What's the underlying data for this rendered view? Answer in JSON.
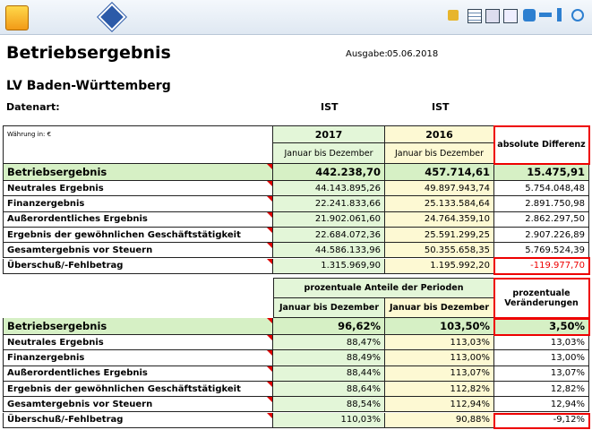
{
  "header": {
    "title": "Betriebsergebnis",
    "issue_label": "Ausgabe:",
    "issue_date": "05.06.2018",
    "organisation": "LV Baden-Württemberg",
    "data_type_label": "Datenart:",
    "data_types": [
      "IST",
      "IST"
    ]
  },
  "table1": {
    "currency": "Währung in: €",
    "columns": [
      {
        "year": "2017",
        "period": "Januar bis Dezember"
      },
      {
        "year": "2016",
        "period": "Januar bis Dezember"
      }
    ],
    "diff_header": "absolute Differenz",
    "rows": [
      [
        "Betriebsergebnis",
        "442.238,70",
        "457.714,61",
        "15.475,91"
      ],
      [
        "Neutrales Ergebnis",
        "44.143.895,26",
        "49.897.943,74",
        "5.754.048,48"
      ],
      [
        "Finanzergebnis",
        "22.241.833,66",
        "25.133.584,64",
        "2.891.750,98"
      ],
      [
        "Außerordentliches Ergebnis",
        "21.902.061,60",
        "24.764.359,10",
        "2.862.297,50"
      ],
      [
        "Ergebnis der gewöhnlichen Geschäftstätigkeit",
        "22.684.072,36",
        "25.591.299,25",
        "2.907.226,89"
      ],
      [
        "Gesamtergebnis vor Steuern",
        "44.586.133,96",
        "50.355.658,35",
        "5.769.524,39"
      ],
      [
        "Überschuß/-Fehlbetrag",
        "1.315.969,90",
        "1.195.992,20",
        "-119.977,70"
      ]
    ]
  },
  "table2": {
    "group_header": "prozentuale Anteile der Perioden",
    "periods": [
      "Januar bis Dezember",
      "Januar bis Dezember"
    ],
    "change_header": "prozentuale Veränderungen",
    "rows": [
      [
        "Betriebsergebnis",
        "96,62%",
        "103,50%",
        "3,50%"
      ],
      [
        "Neutrales Ergebnis",
        "88,47%",
        "113,03%",
        "13,03%"
      ],
      [
        "Finanzergebnis",
        "88,49%",
        "113,00%",
        "13,00%"
      ],
      [
        "Außerordentliches Ergebnis",
        "88,44%",
        "113,07%",
        "13,07%"
      ],
      [
        "Ergebnis der gewöhnlichen Geschäftstätigkeit",
        "88,64%",
        "112,82%",
        "12,82%"
      ],
      [
        "Gesamtergebnis vor Steuern",
        "88,54%",
        "112,94%",
        "12,94%"
      ],
      [
        "Überschuß/-Fehlbetrag",
        "110,03%",
        "90,88%",
        "-9,12%"
      ]
    ]
  }
}
